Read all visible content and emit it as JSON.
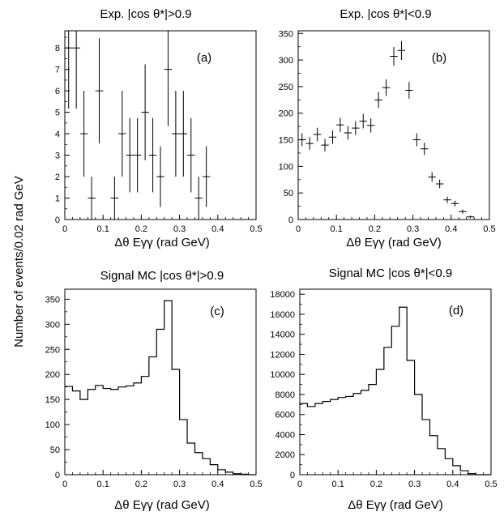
{
  "figure": {
    "ylabel": "Number of events/0.02 rad GeV"
  },
  "chart_data": [
    {
      "type": "scatter",
      "panel": "(a)",
      "title": "Exp. |cos θ*|>0.9",
      "xlabel": "Δθ Eγγ (rad GeV)",
      "xlim": [
        0,
        0.5
      ],
      "ylim": [
        0,
        8.8
      ],
      "xticks": [
        0,
        0.1,
        0.2,
        0.3,
        0.4,
        0.5
      ],
      "xtick_labels": [
        "0",
        "0.1",
        "0.2",
        "0.3",
        "0.4",
        "0.5"
      ],
      "yticks": [
        0,
        1,
        2,
        3,
        4,
        5,
        6,
        7,
        8
      ],
      "ytick_labels": [
        "0",
        "1",
        "2",
        "3",
        "4",
        "5",
        "6",
        "7",
        "8"
      ],
      "error_bars": true,
      "x": [
        0.01,
        0.03,
        0.05,
        0.07,
        0.09,
        0.13,
        0.15,
        0.17,
        0.19,
        0.21,
        0.23,
        0.25,
        0.27,
        0.29,
        0.31,
        0.33,
        0.35,
        0.37
      ],
      "y": [
        8,
        8,
        4,
        1,
        6,
        1,
        4,
        3,
        3,
        5,
        3,
        2,
        7,
        4,
        4,
        3,
        1,
        2
      ]
    },
    {
      "type": "scatter",
      "panel": "(b)",
      "title": "Exp. |cos θ*|<0.9",
      "xlabel": "Δθ Eγγ (rad GeV)",
      "xlim": [
        0,
        0.5
      ],
      "ylim": [
        0,
        355
      ],
      "xticks": [
        0,
        0.1,
        0.2,
        0.3,
        0.4,
        0.5
      ],
      "xtick_labels": [
        "0",
        "0.1",
        "0.2",
        "0.3",
        "0.4",
        "0.5"
      ],
      "yticks": [
        0,
        50,
        100,
        150,
        200,
        250,
        300,
        350
      ],
      "ytick_labels": [
        "0",
        "50",
        "100",
        "150",
        "200",
        "250",
        "300",
        "350"
      ],
      "error_bars": true,
      "x": [
        0.01,
        0.03,
        0.05,
        0.07,
        0.09,
        0.11,
        0.13,
        0.15,
        0.17,
        0.19,
        0.21,
        0.23,
        0.25,
        0.27,
        0.29,
        0.31,
        0.33,
        0.35,
        0.37,
        0.39,
        0.41,
        0.43,
        0.45
      ],
      "y": [
        150,
        143,
        160,
        140,
        155,
        178,
        163,
        172,
        185,
        177,
        225,
        248,
        307,
        318,
        243,
        150,
        133,
        80,
        67,
        37,
        30,
        15,
        5
      ]
    },
    {
      "type": "bar",
      "style": "step-histogram",
      "panel": "(c)",
      "title": "Signal MC |cos θ*|>0.9",
      "xlabel": "Δθ Eγγ (rad GeV)",
      "xlim": [
        0,
        0.5
      ],
      "ylim": [
        0,
        370
      ],
      "xticks": [
        0,
        0.1,
        0.2,
        0.3,
        0.4,
        0.5
      ],
      "xtick_labels": [
        "0",
        "0.1",
        "0.2",
        "0.3",
        "0.4",
        "0.5"
      ],
      "yticks": [
        0,
        50,
        100,
        150,
        200,
        250,
        300,
        350
      ],
      "ytick_labels": [
        "0",
        "50",
        "100",
        "150",
        "200",
        "250",
        "300",
        "350"
      ],
      "bin_width": 0.02,
      "x": [
        0.01,
        0.03,
        0.05,
        0.07,
        0.09,
        0.11,
        0.13,
        0.15,
        0.17,
        0.19,
        0.21,
        0.23,
        0.25,
        0.27,
        0.29,
        0.31,
        0.33,
        0.35,
        0.37,
        0.39,
        0.41,
        0.43,
        0.45,
        0.47,
        0.49
      ],
      "values": [
        176,
        167,
        150,
        170,
        178,
        172,
        170,
        175,
        177,
        183,
        196,
        235,
        290,
        347,
        210,
        110,
        63,
        44,
        32,
        20,
        10,
        5,
        2,
        1,
        0
      ]
    },
    {
      "type": "bar",
      "style": "step-histogram",
      "panel": "(d)",
      "title": "Signal MC |cos θ*|<0.9",
      "xlabel": "Δθ Eγγ (rad GeV)",
      "xlim": [
        0,
        0.5
      ],
      "ylim": [
        0,
        18500
      ],
      "xticks": [
        0,
        0.1,
        0.2,
        0.3,
        0.4,
        0.5
      ],
      "xtick_labels": [
        "0",
        "0.1",
        "0.2",
        "0.3",
        "0.4",
        "0.5"
      ],
      "yticks": [
        0,
        2000,
        4000,
        6000,
        8000,
        10000,
        12000,
        14000,
        16000,
        18000
      ],
      "ytick_labels": [
        "0",
        "2000",
        "4000",
        "6000",
        "8000",
        "10000",
        "12000",
        "14000",
        "16000",
        "18000"
      ],
      "bin_width": 0.02,
      "x": [
        0.01,
        0.03,
        0.05,
        0.07,
        0.09,
        0.11,
        0.13,
        0.15,
        0.17,
        0.19,
        0.21,
        0.23,
        0.25,
        0.27,
        0.29,
        0.31,
        0.33,
        0.35,
        0.37,
        0.39,
        0.41,
        0.43,
        0.45,
        0.47,
        0.49
      ],
      "values": [
        7100,
        6800,
        7100,
        7300,
        7500,
        7700,
        7800,
        8100,
        8400,
        9000,
        10500,
        12700,
        14800,
        16700,
        11400,
        8000,
        5500,
        3900,
        2600,
        1600,
        900,
        400,
        100,
        0,
        0
      ]
    }
  ]
}
